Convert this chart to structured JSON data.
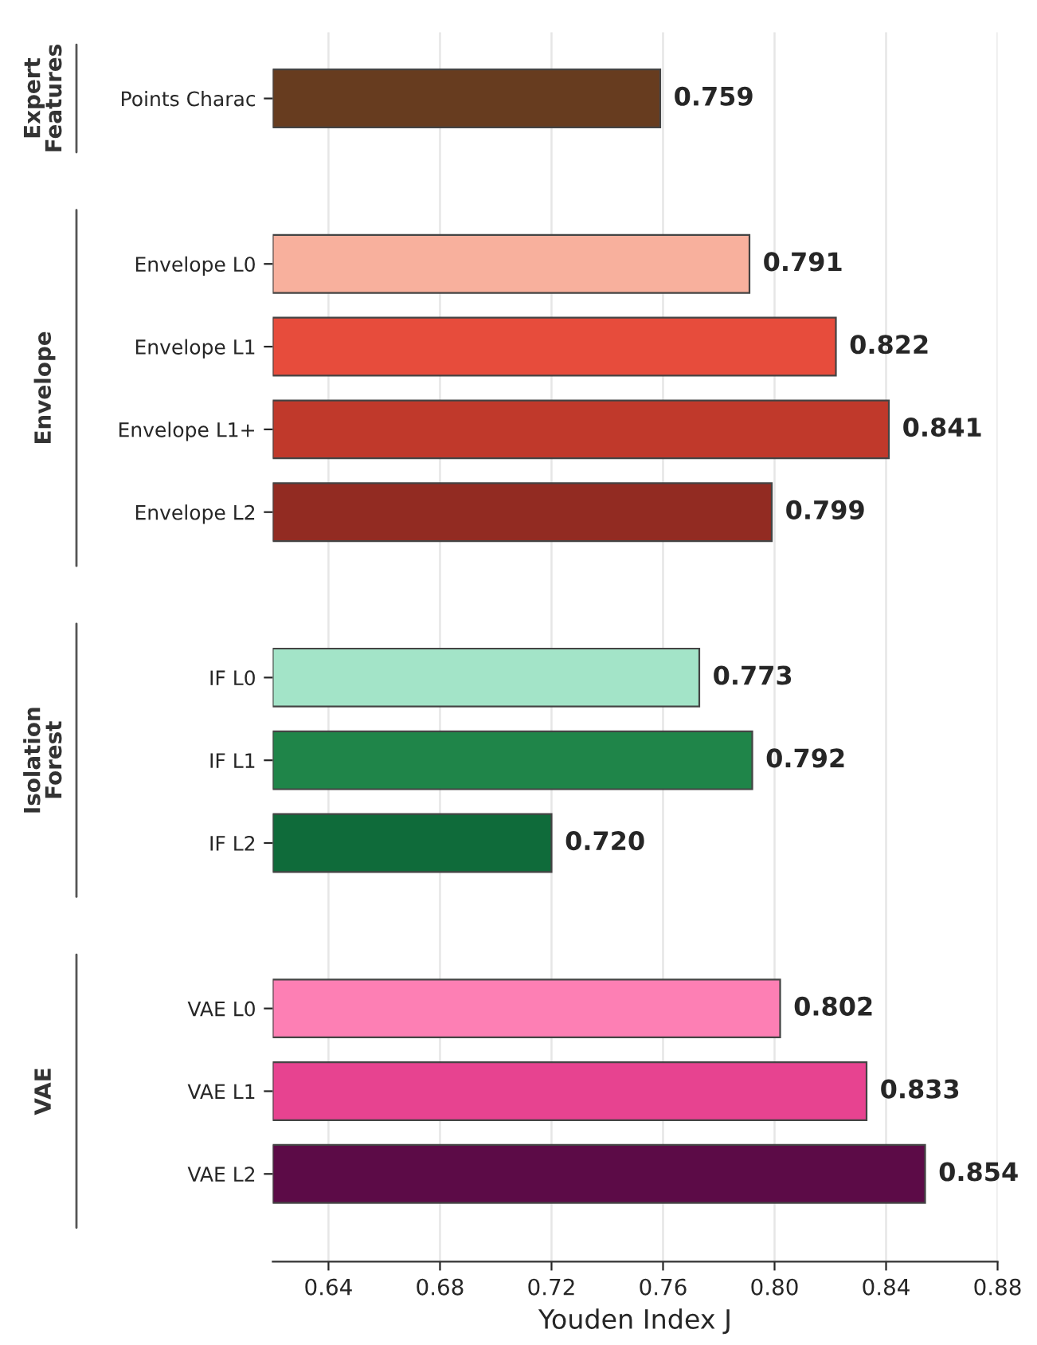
{
  "chart_data": {
    "type": "bar",
    "orientation": "horizontal",
    "xlabel": "Youden Index J",
    "categories": [
      "Points Charac",
      null,
      "Envelope L0",
      "Envelope L1",
      "Envelope L1+",
      "Envelope L2",
      null,
      "IF L0",
      "IF L1",
      "IF L2",
      null,
      "VAE L0",
      "VAE L1",
      "VAE L2"
    ],
    "values": [
      0.759,
      null,
      0.791,
      0.822,
      0.841,
      0.799,
      null,
      0.773,
      0.792,
      0.72,
      null,
      0.802,
      0.833,
      0.854
    ],
    "value_labels": [
      "0.759",
      null,
      "0.791",
      "0.822",
      "0.841",
      "0.799",
      null,
      "0.773",
      "0.792",
      "0.720",
      null,
      "0.802",
      "0.833",
      "0.854"
    ],
    "colors": [
      "#673c1f",
      null,
      "#f8b09d",
      "#e74c3c",
      "#c0392b",
      "#922b22",
      null,
      "#a3e4c8",
      "#1f8549",
      "#0f6b3a",
      null,
      "#fd7fb4",
      "#e74390",
      "#5c0b47"
    ],
    "xlim": [
      0.62,
      0.88
    ],
    "xticks": [
      {
        "value": 0.64,
        "label": "0.64"
      },
      {
        "value": 0.68,
        "label": "0.68"
      },
      {
        "value": 0.72,
        "label": "0.72"
      },
      {
        "value": 0.76,
        "label": "0.76"
      },
      {
        "value": 0.8,
        "label": "0.80"
      },
      {
        "value": 0.84,
        "label": "0.84"
      },
      {
        "value": 0.88,
        "label": "0.88"
      }
    ],
    "grid": "x",
    "annotations": [
      "Expert\nFeatures",
      "Envelope",
      "Isolation\nForest",
      "VAE"
    ]
  }
}
